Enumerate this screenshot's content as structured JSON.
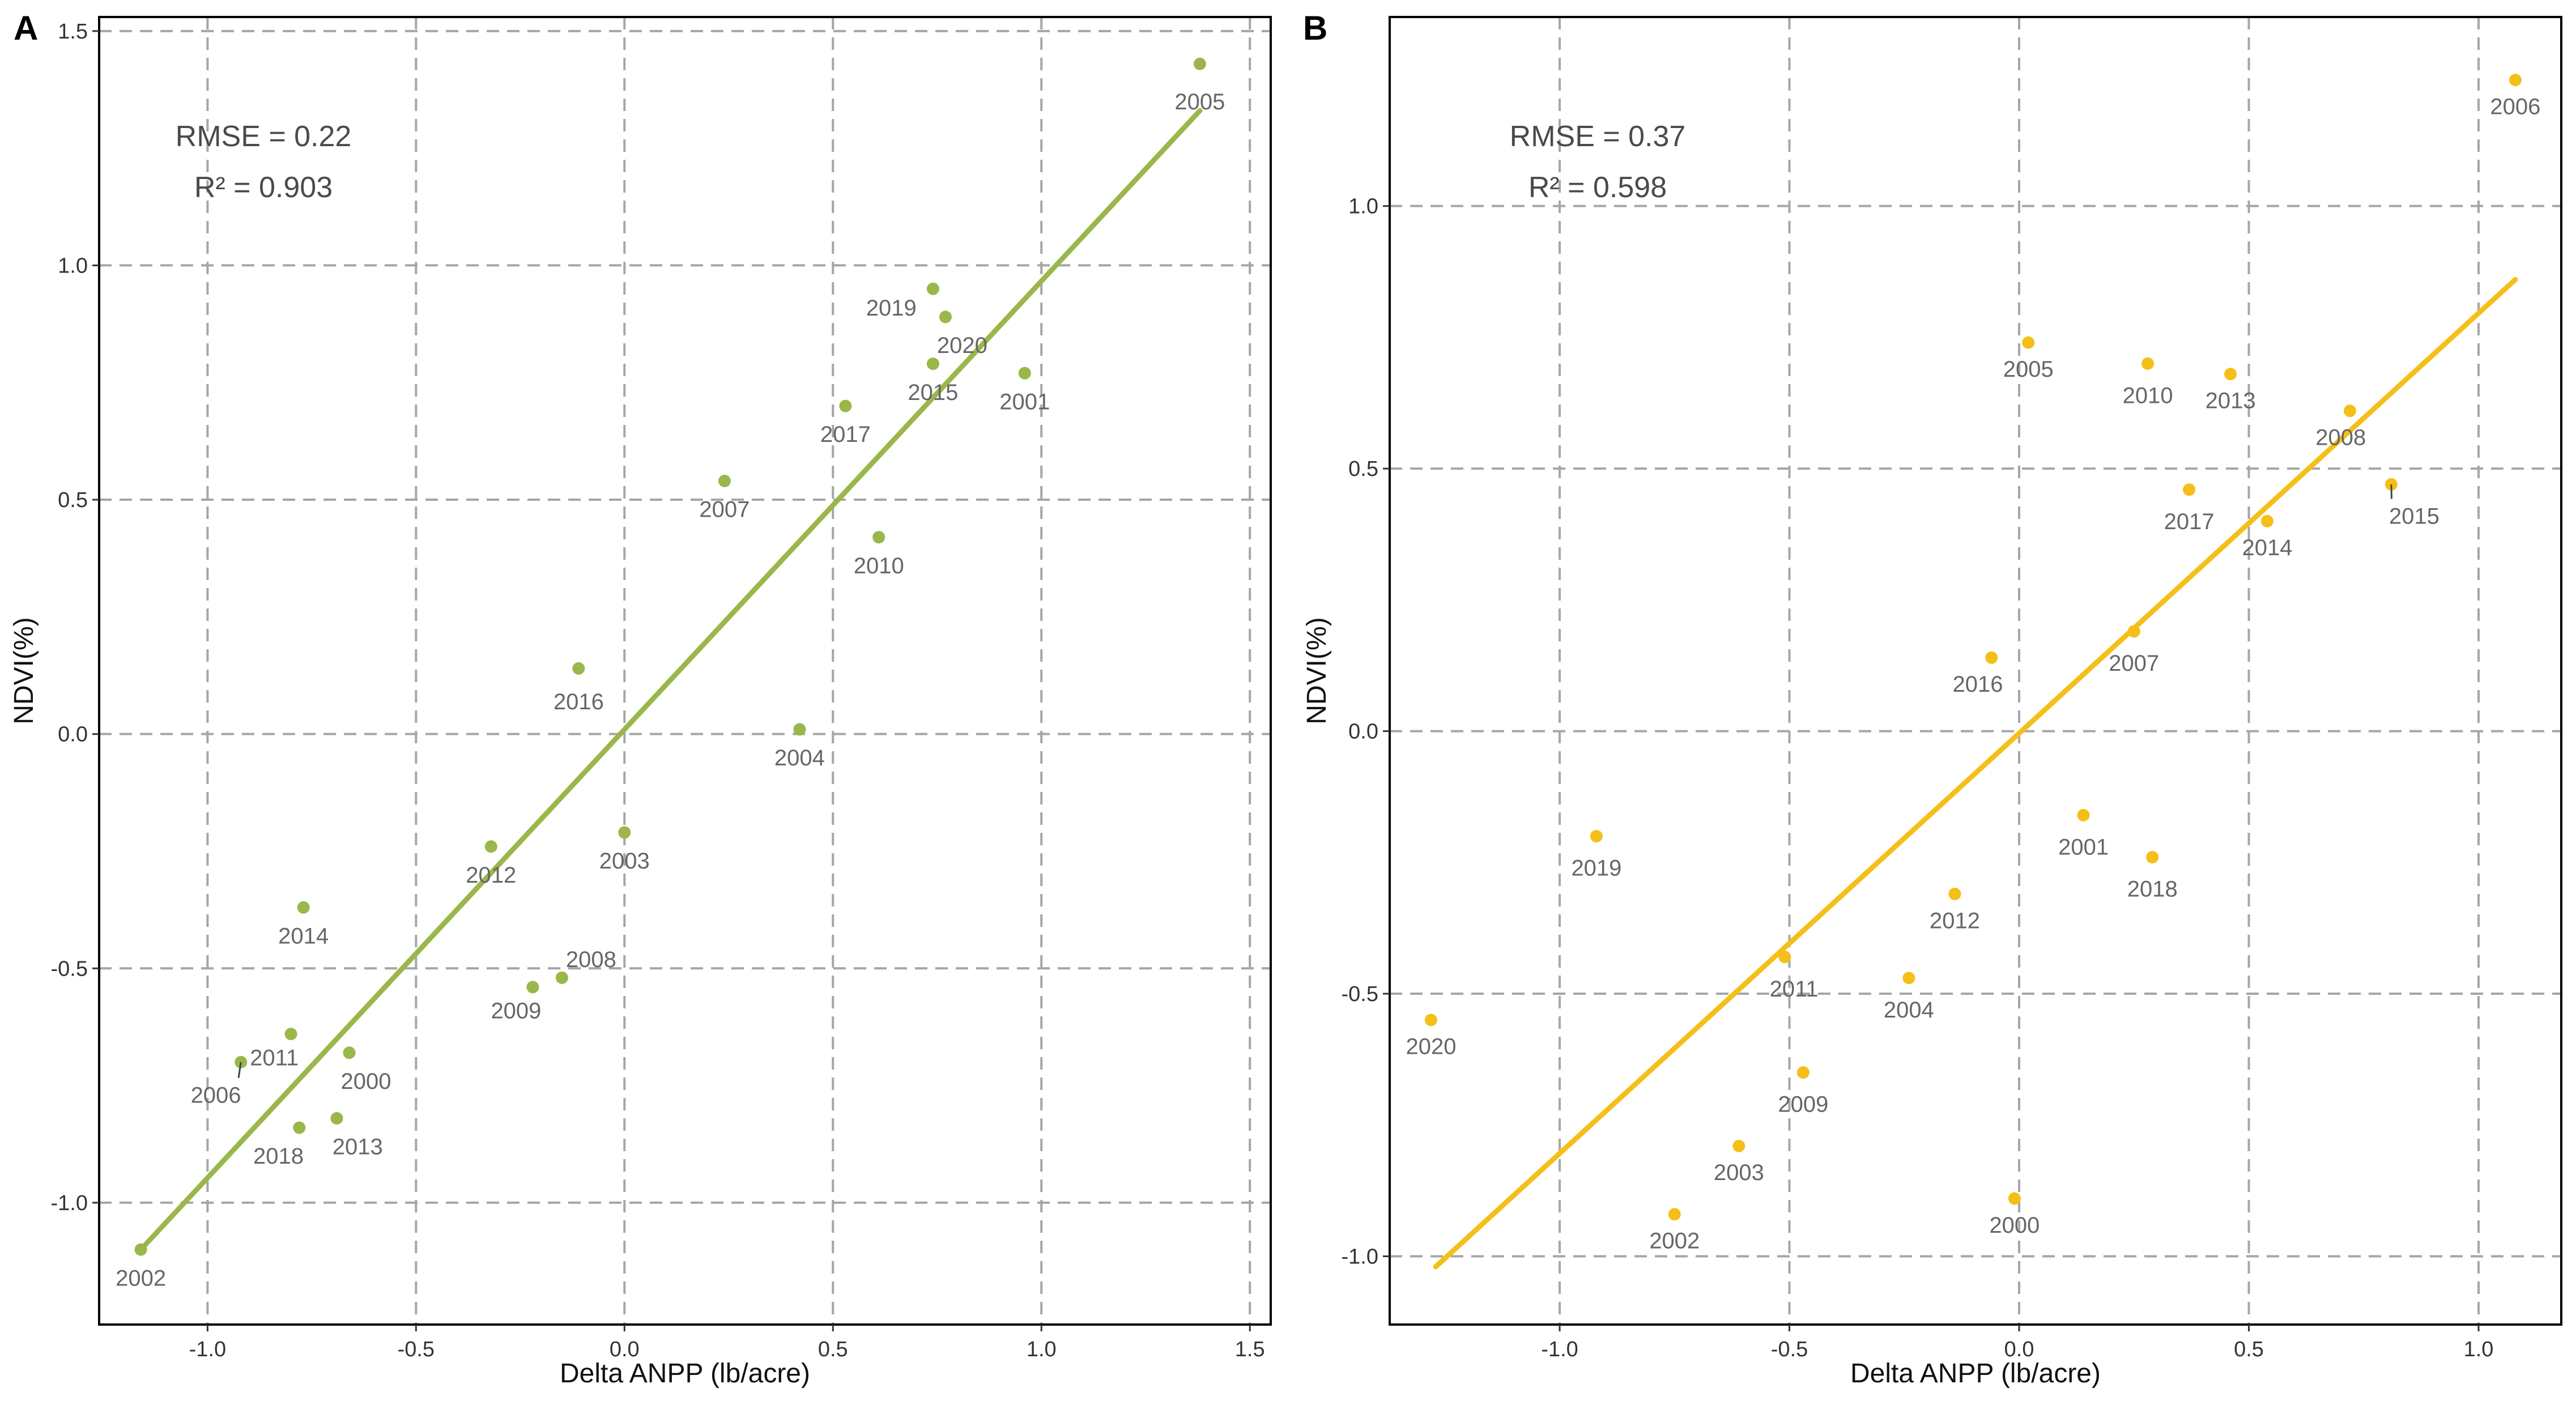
{
  "chart_data": [
    {
      "type": "scatter",
      "panel": "A",
      "xlabel": "Delta ANPP (lb/acre)",
      "ylabel": "NDVI(%)",
      "xlim": [
        -1.26,
        1.55
      ],
      "ylim": [
        -1.26,
        1.53
      ],
      "xticks": [
        -1.0,
        -0.5,
        0.0,
        0.5,
        1.0,
        1.5
      ],
      "xtick_labels": [
        "-1.0",
        "-0.5",
        "0.0",
        "0.5",
        "1.0",
        "1.5"
      ],
      "yticks": [
        -1.0,
        -0.5,
        0.0,
        0.5,
        1.0,
        1.5
      ],
      "ytick_labels": [
        "-1.0",
        "-0.5",
        "0.0",
        "0.5",
        "1.0",
        "1.5"
      ],
      "grid": true,
      "color": "#9ab74a",
      "stats": [
        "RMSE = 0.22",
        "R² = 0.903"
      ],
      "fit_line": {
        "x": [
          -1.16,
          1.38
        ],
        "y": [
          -1.1,
          1.33
        ]
      },
      "points": [
        {
          "label": "2005",
          "x": 1.38,
          "y": 1.43,
          "lx": 1.38,
          "ly": 1.35
        },
        {
          "label": "2019",
          "x": 0.74,
          "y": 0.95,
          "lx": 0.64,
          "ly": 0.91
        },
        {
          "label": "2020",
          "x": 0.77,
          "y": 0.89,
          "lx": 0.81,
          "ly": 0.83
        },
        {
          "label": "2015",
          "x": 0.74,
          "y": 0.79,
          "lx": 0.74,
          "ly": 0.73
        },
        {
          "label": "2001",
          "x": 0.96,
          "y": 0.77,
          "lx": 0.96,
          "ly": 0.71
        },
        {
          "label": "2017",
          "x": 0.53,
          "y": 0.7,
          "lx": 0.53,
          "ly": 0.64
        },
        {
          "label": "2007",
          "x": 0.24,
          "y": 0.54,
          "lx": 0.24,
          "ly": 0.48
        },
        {
          "label": "2010",
          "x": 0.61,
          "y": 0.42,
          "lx": 0.61,
          "ly": 0.36
        },
        {
          "label": "2016",
          "x": -0.11,
          "y": 0.14,
          "lx": -0.11,
          "ly": 0.07
        },
        {
          "label": "2004",
          "x": 0.42,
          "y": 0.01,
          "lx": 0.42,
          "ly": -0.05
        },
        {
          "label": "2003",
          "x": 0.0,
          "y": -0.21,
          "lx": 0.0,
          "ly": -0.27
        },
        {
          "label": "2012",
          "x": -0.32,
          "y": -0.24,
          "lx": -0.32,
          "ly": -0.3
        },
        {
          "label": "2014",
          "x": -0.77,
          "y": -0.37,
          "lx": -0.77,
          "ly": -0.43
        },
        {
          "label": "2008",
          "x": -0.15,
          "y": -0.52,
          "lx": -0.08,
          "ly": -0.48
        },
        {
          "label": "2009",
          "x": -0.22,
          "y": -0.54,
          "lx": -0.26,
          "ly": -0.59
        },
        {
          "label": "2011",
          "x": -0.8,
          "y": -0.64,
          "lx": -0.84,
          "ly": -0.69
        },
        {
          "label": "2000",
          "x": -0.66,
          "y": -0.68,
          "lx": -0.62,
          "ly": -0.74
        },
        {
          "label": "2006",
          "x": -0.92,
          "y": -0.7,
          "lx": -0.98,
          "ly": -0.77
        },
        {
          "label": "2018",
          "x": -0.78,
          "y": -0.84,
          "lx": -0.83,
          "ly": -0.9
        },
        {
          "label": "2013",
          "x": -0.69,
          "y": -0.82,
          "lx": -0.64,
          "ly": -0.88
        },
        {
          "label": "2002",
          "x": -1.16,
          "y": -1.1,
          "lx": -1.16,
          "ly": -1.16
        }
      ]
    },
    {
      "type": "scatter",
      "panel": "B",
      "xlabel": "Delta ANPP (lb/acre)",
      "ylabel": "NDVI(%)",
      "xlim": [
        -1.37,
        1.18
      ],
      "ylim": [
        -1.13,
        1.36
      ],
      "xticks": [
        -1.0,
        -0.5,
        0.0,
        0.5,
        1.0
      ],
      "xtick_labels": [
        "-1.0",
        "-0.5",
        "0.0",
        "0.5",
        "1.0"
      ],
      "yticks": [
        -1.0,
        -0.5,
        0.0,
        0.5,
        1.0
      ],
      "ytick_labels": [
        "-1.0",
        "-0.5",
        "0.0",
        "0.5",
        "1.0"
      ],
      "grid": true,
      "color": "#f5bf19",
      "stats": [
        "RMSE = 0.37",
        "R² = 0.598"
      ],
      "fit_line": {
        "x": [
          -1.27,
          1.08
        ],
        "y": [
          -1.02,
          0.86
        ]
      },
      "points": [
        {
          "label": "2006",
          "x": 1.08,
          "y": 1.24,
          "lx": 1.08,
          "ly": 1.19
        },
        {
          "label": "2005",
          "x": 0.02,
          "y": 0.74,
          "lx": 0.02,
          "ly": 0.69
        },
        {
          "label": "2010",
          "x": 0.28,
          "y": 0.7,
          "lx": 0.28,
          "ly": 0.64
        },
        {
          "label": "2013",
          "x": 0.46,
          "y": 0.68,
          "lx": 0.46,
          "ly": 0.63
        },
        {
          "label": "2008",
          "x": 0.72,
          "y": 0.61,
          "lx": 0.7,
          "ly": 0.56
        },
        {
          "label": "2017",
          "x": 0.37,
          "y": 0.46,
          "lx": 0.37,
          "ly": 0.4
        },
        {
          "label": "2015",
          "x": 0.81,
          "y": 0.47,
          "lx": 0.86,
          "ly": 0.41
        },
        {
          "label": "2014",
          "x": 0.54,
          "y": 0.4,
          "lx": 0.54,
          "ly": 0.35
        },
        {
          "label": "2016",
          "x": -0.06,
          "y": 0.14,
          "lx": -0.09,
          "ly": 0.09
        },
        {
          "label": "2007",
          "x": 0.25,
          "y": 0.19,
          "lx": 0.25,
          "ly": 0.13
        },
        {
          "label": "2001",
          "x": 0.14,
          "y": -0.16,
          "lx": 0.14,
          "ly": -0.22
        },
        {
          "label": "2019",
          "x": -0.92,
          "y": -0.2,
          "lx": -0.92,
          "ly": -0.26
        },
        {
          "label": "2018",
          "x": 0.29,
          "y": -0.24,
          "lx": 0.29,
          "ly": -0.3
        },
        {
          "label": "2012",
          "x": -0.14,
          "y": -0.31,
          "lx": -0.14,
          "ly": -0.36
        },
        {
          "label": "2011",
          "x": -0.51,
          "y": -0.43,
          "lx": -0.49,
          "ly": -0.49
        },
        {
          "label": "2004",
          "x": -0.24,
          "y": -0.47,
          "lx": -0.24,
          "ly": -0.53
        },
        {
          "label": "2020",
          "x": -1.28,
          "y": -0.55,
          "lx": -1.28,
          "ly": -0.6
        },
        {
          "label": "2009",
          "x": -0.47,
          "y": -0.65,
          "lx": -0.47,
          "ly": -0.71
        },
        {
          "label": "2003",
          "x": -0.61,
          "y": -0.79,
          "lx": -0.61,
          "ly": -0.84
        },
        {
          "label": "2002",
          "x": -0.75,
          "y": -0.92,
          "lx": -0.75,
          "ly": -0.97
        },
        {
          "label": "2000",
          "x": -0.01,
          "y": -0.89,
          "lx": -0.01,
          "ly": -0.94
        }
      ]
    }
  ]
}
